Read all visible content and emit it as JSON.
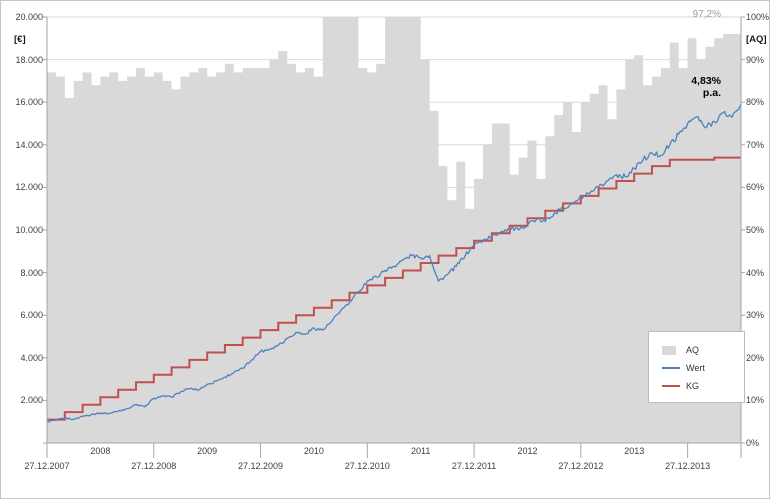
{
  "axes": {
    "left_title": "[€]",
    "right_title": "[AQ]"
  },
  "annotations": {
    "aq_final": "97,2%",
    "return_value": "4,83%",
    "return_unit": "p.a."
  },
  "legend": {
    "items": [
      {
        "label": "AQ",
        "swatch": "area",
        "color": "#d9d9d9"
      },
      {
        "label": "Wert",
        "swatch": "line",
        "color": "#4f81bd"
      },
      {
        "label": "KG",
        "swatch": "line",
        "color": "#c0504d"
      }
    ]
  },
  "chart_data": {
    "type": "combo",
    "title": "",
    "x": {
      "n_points": 79,
      "unit": "months from 27.12.2007",
      "months_per_tick": 12,
      "tick_labels": [
        "27.12.2007",
        "27.12.2008",
        "27.12.2009",
        "27.12.2010",
        "27.12.2011",
        "27.12.2012",
        "27.12.2013"
      ],
      "year_labels": [
        "2008",
        "2009",
        "2010",
        "2011",
        "2012",
        "2013"
      ]
    },
    "y_left": {
      "min": 0,
      "max": 20000,
      "step": 2000,
      "tick_labels": [
        "2.000",
        "4.000",
        "6.000",
        "8.000",
        "10.000",
        "12.000",
        "14.000",
        "16.000",
        "18.000",
        "20.000"
      ]
    },
    "y_right": {
      "min": 0,
      "max": 100,
      "step": 10,
      "tick_labels": [
        "0%",
        "10%",
        "20%",
        "30%",
        "40%",
        "50%",
        "60%",
        "70%",
        "80%",
        "90%",
        "100%"
      ]
    },
    "grid": "horizontal",
    "colors": {
      "gridline": "#d9d9d9",
      "axis_line": "#a6a6a6"
    },
    "series": [
      {
        "name": "AQ",
        "render": "step-area",
        "axis": "right",
        "color": "#d9d9d9",
        "values": [
          87,
          86,
          81,
          85,
          87,
          84,
          86,
          87,
          85,
          86,
          88,
          86,
          87,
          85,
          83,
          86,
          87,
          88,
          86,
          87,
          89,
          87,
          88,
          88,
          88,
          90,
          92,
          89,
          87,
          88,
          86,
          100,
          100,
          100,
          100,
          88,
          87,
          89,
          100,
          100,
          100,
          100,
          90,
          78,
          65,
          57,
          66,
          55,
          62,
          70,
          75,
          75,
          63,
          67,
          71,
          62,
          72,
          77,
          80,
          73,
          80,
          82,
          84,
          76,
          83,
          90,
          91,
          84,
          86,
          88,
          94,
          88,
          95,
          90,
          93,
          95,
          96,
          96,
          97.2
        ]
      },
      {
        "name": "Wert",
        "render": "line",
        "axis": "left",
        "color": "#4f81bd",
        "values": [
          1000,
          1070,
          1160,
          1120,
          1250,
          1340,
          1420,
          1380,
          1500,
          1620,
          1800,
          1700,
          2100,
          2200,
          2150,
          2400,
          2550,
          2500,
          2750,
          2900,
          3100,
          3300,
          3500,
          3900,
          4300,
          4400,
          4600,
          4900,
          5200,
          5100,
          5400,
          5300,
          5700,
          6200,
          6600,
          7100,
          7600,
          7800,
          8100,
          8300,
          8600,
          8800,
          8700,
          8800,
          7600,
          7900,
          8300,
          8800,
          9300,
          9500,
          9700,
          9900,
          10100,
          10000,
          10300,
          10500,
          10400,
          10800,
          11000,
          11200,
          11500,
          11700,
          12000,
          12300,
          12600,
          12500,
          12900,
          13300,
          13600,
          13500,
          14000,
          14500,
          15000,
          15300,
          14800,
          15100,
          15500,
          15300,
          15900
        ]
      },
      {
        "name": "KG",
        "render": "step-line",
        "axis": "left",
        "color": "#c0504d",
        "values": [
          1100,
          1100,
          1450,
          1450,
          1800,
          1800,
          2150,
          2150,
          2500,
          2500,
          2850,
          2850,
          3200,
          3200,
          3550,
          3550,
          3900,
          3900,
          4250,
          4250,
          4600,
          4600,
          4950,
          4950,
          5300,
          5300,
          5650,
          5650,
          6000,
          6000,
          6350,
          6350,
          6700,
          6700,
          7050,
          7050,
          7400,
          7400,
          7750,
          7750,
          8100,
          8100,
          8450,
          8450,
          8800,
          8800,
          9150,
          9150,
          9500,
          9500,
          9850,
          9850,
          10200,
          10200,
          10550,
          10550,
          10900,
          10900,
          11250,
          11250,
          11600,
          11600,
          11950,
          11950,
          12300,
          12300,
          12650,
          12650,
          13000,
          13000,
          13300,
          13300,
          13300,
          13300,
          13300,
          13400,
          13400,
          13400,
          13400
        ]
      }
    ]
  }
}
